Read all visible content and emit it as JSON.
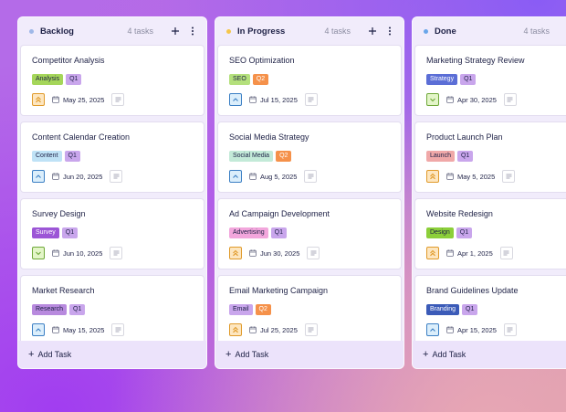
{
  "columns": [
    {
      "title": "Backlog",
      "count": "4 tasks",
      "dot_color": "#9fb8e8",
      "add_task": "Add Task",
      "cards": [
        {
          "title": "Competitor Analysis",
          "tags": [
            {
              "label": "Analysis",
              "bg": "#a5d65a"
            },
            {
              "label": "Q1",
              "bg": "#c9a6ec"
            }
          ],
          "priority": "high",
          "priority_icon": "double-chevron-up-icon",
          "date": "May 25, 2025"
        },
        {
          "title": "Content Calendar Creation",
          "tags": [
            {
              "label": "Content",
              "bg": "#bfe2f6"
            },
            {
              "label": "Q1",
              "bg": "#c9a6ec"
            }
          ],
          "priority": "medium",
          "priority_icon": "chevron-up-icon",
          "date": "Jun 20, 2025"
        },
        {
          "title": "Survey Design",
          "tags": [
            {
              "label": "Survey",
              "bg": "#9c56d6",
              "fg": "#ffffff"
            },
            {
              "label": "Q1",
              "bg": "#c9a6ec"
            }
          ],
          "priority": "low",
          "priority_icon": "chevron-down-icon",
          "date": "Jun 10, 2025"
        },
        {
          "title": "Market Research",
          "tags": [
            {
              "label": "Research",
              "bg": "#b88ade"
            },
            {
              "label": "Q1",
              "bg": "#c9a6ec"
            }
          ],
          "priority": "medium",
          "priority_icon": "chevron-up-icon",
          "date": "May 15, 2025"
        }
      ]
    },
    {
      "title": "In Progress",
      "count": "4 tasks",
      "dot_color": "#f5c64a",
      "add_task": "Add Task",
      "cards": [
        {
          "title": "SEO Optimization",
          "tags": [
            {
              "label": "SEO",
              "bg": "#b4e07c"
            },
            {
              "label": "Q2",
              "bg": "#f5914a",
              "fg": "#ffffff"
            }
          ],
          "priority": "medium",
          "priority_icon": "chevron-up-icon",
          "date": "Jul 15, 2025"
        },
        {
          "title": "Social Media Strategy",
          "tags": [
            {
              "label": "Social Media",
              "bg": "#c3ead8"
            },
            {
              "label": "Q2",
              "bg": "#f5914a",
              "fg": "#ffffff"
            }
          ],
          "priority": "medium",
          "priority_icon": "chevron-up-icon",
          "date": "Aug 5, 2025"
        },
        {
          "title": "Ad Campaign Development",
          "tags": [
            {
              "label": "Advertising",
              "bg": "#f2a6dc"
            },
            {
              "label": "Q1",
              "bg": "#c9a6ec"
            }
          ],
          "priority": "high",
          "priority_icon": "double-chevron-up-icon",
          "date": "Jun 30, 2025"
        },
        {
          "title": "Email Marketing Campaign",
          "tags": [
            {
              "label": "Email",
              "bg": "#c9a6ec"
            },
            {
              "label": "Q2",
              "bg": "#f5914a",
              "fg": "#ffffff"
            }
          ],
          "priority": "high",
          "priority_icon": "double-chevron-up-icon",
          "date": "Jul 25, 2025"
        }
      ]
    },
    {
      "title": "Done",
      "count": "4 tasks",
      "dot_color": "#6aa6ea",
      "add_task": "Add Task",
      "cards": [
        {
          "title": "Marketing Strategy Review",
          "tags": [
            {
              "label": "Strategy",
              "bg": "#5b6ed6",
              "fg": "#ffffff"
            },
            {
              "label": "Q1",
              "bg": "#c9a6ec"
            }
          ],
          "priority": "low",
          "priority_icon": "chevron-down-icon",
          "date": "Apr 30, 2025"
        },
        {
          "title": "Product Launch Plan",
          "tags": [
            {
              "label": "Launch",
              "bg": "#f0a8a8"
            },
            {
              "label": "Q1",
              "bg": "#c9a6ec"
            }
          ],
          "priority": "high",
          "priority_icon": "double-chevron-up-icon",
          "date": "May 5, 2025"
        },
        {
          "title": "Website Redesign",
          "tags": [
            {
              "label": "Design",
              "bg": "#8ccf3a"
            },
            {
              "label": "Q1",
              "bg": "#c9a6ec"
            }
          ],
          "priority": "high",
          "priority_icon": "double-chevron-up-icon",
          "date": "Apr 1, 2025"
        },
        {
          "title": "Brand Guidelines Update",
          "tags": [
            {
              "label": "Branding",
              "bg": "#3b5bb8",
              "fg": "#ffffff"
            },
            {
              "label": "Q1",
              "bg": "#c9a6ec"
            }
          ],
          "priority": "medium",
          "priority_icon": "chevron-up-icon",
          "date": "Apr 15, 2025"
        }
      ]
    }
  ],
  "priority_colors": {
    "high": {
      "bg": "#fde6c0",
      "fg": "#e09a2a"
    },
    "medium": {
      "bg": "#dbeefb",
      "fg": "#3b7fc4"
    },
    "low": {
      "bg": "#e3f5c8",
      "fg": "#6ea838"
    }
  }
}
